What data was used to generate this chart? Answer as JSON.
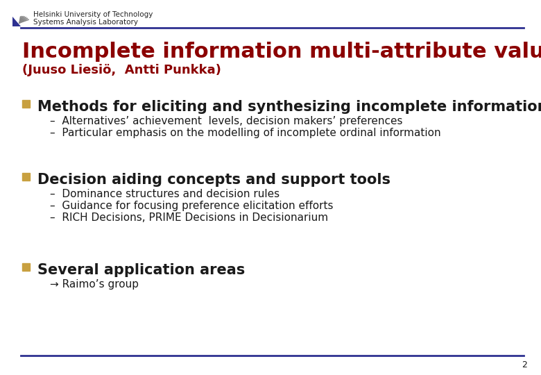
{
  "bg_color": "#ffffff",
  "line_color": "#2E3191",
  "header_text1": "Helsinki University of Technology",
  "header_text2": "Systems Analysis Laboratory",
  "title": "Incomplete information multi-attribute value models",
  "subtitle": "(Juuso Liesiö,  Antti Punkka)",
  "title_color": "#8B0000",
  "subtitle_color": "#8B0000",
  "bullet_color": "#C8A040",
  "bullet1": "Methods for eliciting and synthesizing incomplete information",
  "bullet1_subs": [
    "Alternatives’ achievement  levels, decision makers’ preferences",
    "Particular emphasis on the modelling of incomplete ordinal information"
  ],
  "bullet2": "Decision aiding concepts and support tools",
  "bullet2_subs": [
    "Dominance structures and decision rules",
    "Guidance for focusing preference elicitation efforts",
    "RICH Decisions, PRIME Decisions in Decisionarium"
  ],
  "bullet3": "Several application areas",
  "bullet3_sub": "→ Raimo’s group",
  "page_number": "2",
  "header_font_size": 7.5,
  "title_font_size": 22,
  "subtitle_font_size": 13,
  "bullet_font_size": 15,
  "sub_font_size": 11,
  "text_color": "#1a1a1a"
}
